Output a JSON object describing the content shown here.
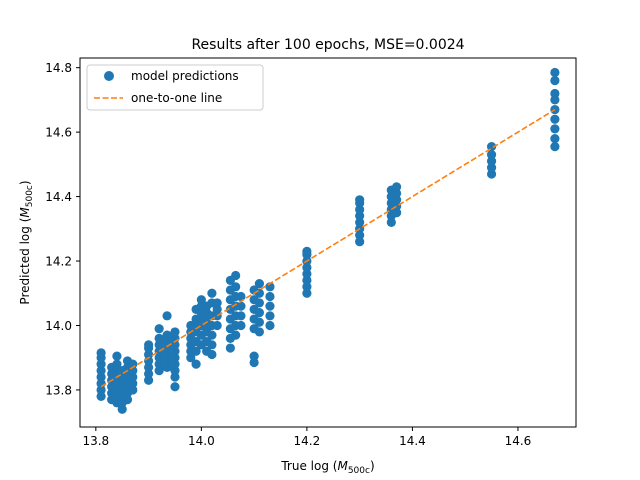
{
  "chart_data": {
    "type": "scatter",
    "title": "Results after 100 epochs, MSE=0.0024",
    "xlabel": "True log",
    "ylabel": "Predicted log",
    "math_symbol": "M",
    "math_subscript": "500c",
    "xlim": [
      13.77,
      14.71
    ],
    "ylim": [
      13.685,
      14.83
    ],
    "xticks": [
      13.8,
      14.0,
      14.2,
      14.4,
      14.6
    ],
    "yticks": [
      13.8,
      14.0,
      14.2,
      14.4,
      14.6,
      14.8
    ],
    "xtick_labels": [
      "13.8",
      "14.0",
      "14.2",
      "14.4",
      "14.6"
    ],
    "ytick_labels": [
      "13.8",
      "14.0",
      "14.2",
      "14.4",
      "14.6",
      "14.8"
    ],
    "legend_position": "upper-left",
    "scatter_color": "#1f77b4",
    "line_color": "#ff7f0e",
    "series": [
      {
        "name": "model predictions",
        "type": "scatter",
        "clusters": [
          {
            "x": 13.81,
            "y": [
              13.78,
              13.8,
              13.82,
              13.84,
              13.86,
              13.88,
              13.9,
              13.915
            ]
          },
          {
            "x": 13.83,
            "y": [
              13.77,
              13.79,
              13.81,
              13.83,
              13.85,
              13.87
            ]
          },
          {
            "x": 13.84,
            "y": [
              13.76,
              13.78,
              13.8,
              13.82,
              13.84,
              13.86,
              13.88,
              13.905
            ]
          },
          {
            "x": 13.85,
            "y": [
              13.74,
              13.76,
              13.78,
              13.8,
              13.82,
              13.84,
              13.86
            ]
          },
          {
            "x": 13.86,
            "y": [
              13.77,
              13.79,
              13.81,
              13.83,
              13.85,
              13.87,
              13.89
            ]
          },
          {
            "x": 13.87,
            "y": [
              13.8,
              13.82,
              13.84,
              13.86,
              13.88
            ]
          },
          {
            "x": 13.9,
            "y": [
              13.83,
              13.85,
              13.87,
              13.89,
              13.91,
              13.93,
              13.94
            ]
          },
          {
            "x": 13.92,
            "y": [
              13.86,
              13.88,
              13.9,
              13.92,
              13.94,
              13.96,
              13.99
            ]
          },
          {
            "x": 13.935,
            "y": [
              13.87,
              13.89,
              13.91,
              13.93,
              13.95,
              13.97,
              14.03
            ]
          },
          {
            "x": 13.95,
            "y": [
              13.81,
              13.84,
              13.86,
              13.88,
              13.9,
              13.92,
              13.94,
              13.96,
              13.98
            ]
          },
          {
            "x": 13.98,
            "y": [
              13.9,
              13.92,
              13.94,
              13.96,
              13.98,
              14.0
            ]
          },
          {
            "x": 13.99,
            "y": [
              13.88,
              13.92,
              13.95,
              13.98,
              14.0,
              14.02,
              14.05
            ]
          },
          {
            "x": 14.0,
            "y": [
              13.94,
              13.97,
              14.0,
              14.02,
              14.04,
              14.06,
              14.08
            ]
          },
          {
            "x": 14.01,
            "y": [
              13.92,
              13.95,
              13.98,
              14.0,
              14.02,
              14.04,
              14.06
            ]
          },
          {
            "x": 14.02,
            "y": [
              13.91,
              13.94,
              13.97,
              14.0,
              14.03,
              14.07,
              14.1
            ]
          },
          {
            "x": 14.03,
            "y": [
              14.0,
              14.03,
              14.05,
              14.07
            ]
          },
          {
            "x": 14.055,
            "y": [
              13.93,
              13.96,
              13.99,
              14.02,
              14.05,
              14.08,
              14.11,
              14.14
            ]
          },
          {
            "x": 14.065,
            "y": [
              13.97,
              14.0,
              14.03,
              14.06,
              14.09,
              14.12,
              14.155
            ]
          },
          {
            "x": 14.075,
            "y": [
              14.0,
              14.03,
              14.06,
              14.09
            ]
          },
          {
            "x": 14.1,
            "y": [
              13.885,
              13.905,
              13.99,
              14.02,
              14.05,
              14.08,
              14.11
            ]
          },
          {
            "x": 14.11,
            "y": [
              13.98,
              14.01,
              14.04,
              14.07,
              14.1,
              14.13
            ]
          },
          {
            "x": 14.13,
            "y": [
              14.0,
              14.03,
              14.06,
              14.09,
              14.12
            ]
          },
          {
            "x": 14.2,
            "y": [
              14.1,
              14.12,
              14.14,
              14.16,
              14.18,
              14.2,
              14.22,
              14.23
            ]
          },
          {
            "x": 14.3,
            "y": [
              14.26,
              14.28,
              14.3,
              14.32,
              14.34,
              14.36,
              14.38,
              14.39
            ]
          },
          {
            "x": 14.36,
            "y": [
              14.32,
              14.34,
              14.36,
              14.38,
              14.4,
              14.42
            ]
          },
          {
            "x": 14.37,
            "y": [
              14.35,
              14.37,
              14.39,
              14.41,
              14.43
            ]
          },
          {
            "x": 14.55,
            "y": [
              14.47,
              14.49,
              14.51,
              14.53,
              14.555
            ]
          },
          {
            "x": 14.67,
            "y": [
              14.555,
              14.58,
              14.61,
              14.64,
              14.67,
              14.7,
              14.72,
              14.76,
              14.785
            ]
          }
        ]
      },
      {
        "name": "one-to-one line",
        "type": "line",
        "style": "dashed",
        "x": [
          13.81,
          14.67
        ],
        "y": [
          13.81,
          14.67
        ]
      }
    ]
  }
}
